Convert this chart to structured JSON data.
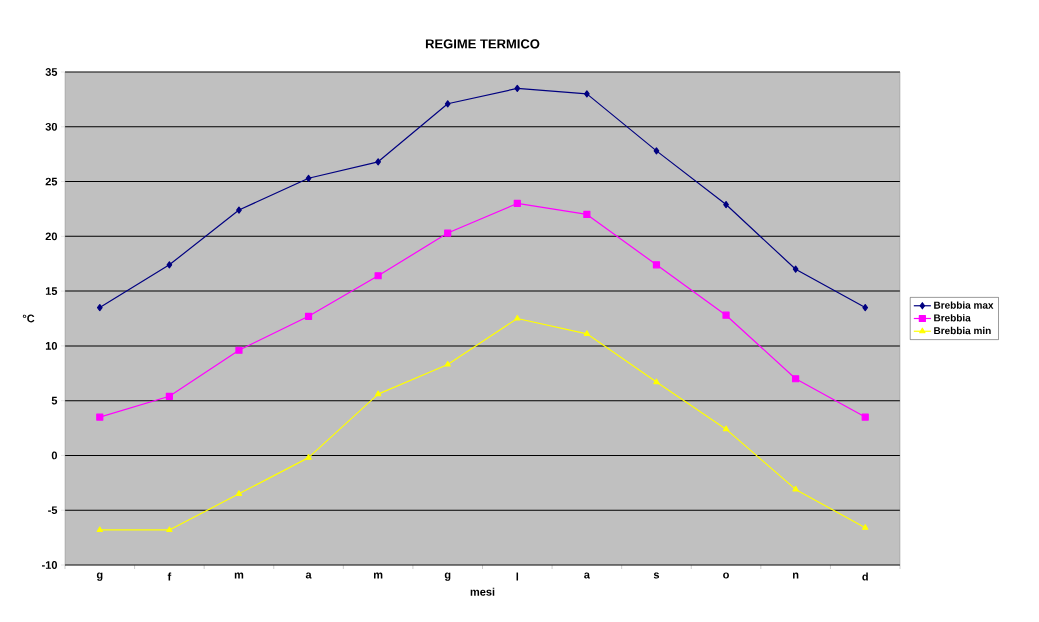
{
  "chart_data": {
    "type": "line",
    "title": "REGIME TERMICO",
    "xlabel": "mesi",
    "ylabel": "°C",
    "categories": [
      "g",
      "f",
      "m",
      "a",
      "m",
      "g",
      "l",
      "a",
      "s",
      "o",
      "n",
      "d"
    ],
    "series": [
      {
        "name": "Brebbia max",
        "color": "#000080",
        "marker": "diamond",
        "values": [
          13.5,
          17.4,
          22.4,
          25.3,
          26.8,
          32.1,
          33.5,
          33.0,
          27.8,
          22.9,
          17.0,
          13.5
        ]
      },
      {
        "name": "Brebbia",
        "color": "#ff00ff",
        "marker": "square",
        "values": [
          3.5,
          5.4,
          9.6,
          12.7,
          16.4,
          20.3,
          23.0,
          22.0,
          17.4,
          12.8,
          7.0,
          3.5
        ]
      },
      {
        "name": "Brebbia min",
        "color": "#ffff00",
        "marker": "triangle",
        "values": [
          -6.8,
          -6.8,
          -3.5,
          -0.2,
          5.6,
          8.3,
          12.5,
          11.1,
          6.7,
          2.4,
          -3.1,
          -6.6
        ]
      }
    ],
    "ylim": [
      -10,
      35
    ],
    "yticks": [
      -10,
      -5,
      0,
      5,
      10,
      15,
      20,
      25,
      30,
      35
    ],
    "grid": "y",
    "legend": "right",
    "line_style": "solid"
  }
}
